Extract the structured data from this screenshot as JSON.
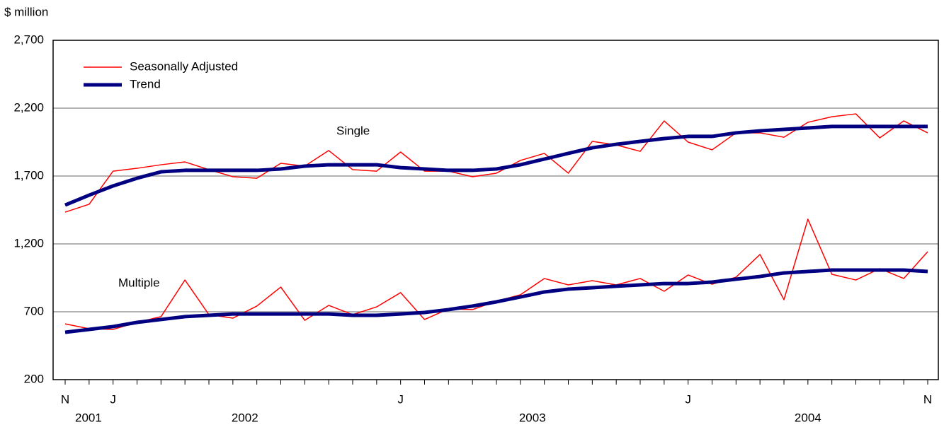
{
  "chart_data": {
    "type": "line",
    "y_axis_label": "$ million",
    "x": [
      "2001-11",
      "2001-12",
      "2002-01",
      "2002-02",
      "2002-03",
      "2002-04",
      "2002-05",
      "2002-06",
      "2002-07",
      "2002-08",
      "2002-09",
      "2002-10",
      "2002-11",
      "2002-12",
      "2003-01",
      "2003-02",
      "2003-03",
      "2003-04",
      "2003-05",
      "2003-06",
      "2003-07",
      "2003-08",
      "2003-09",
      "2003-10",
      "2003-11",
      "2003-12",
      "2004-01",
      "2004-02",
      "2004-03",
      "2004-04",
      "2004-05",
      "2004-06",
      "2004-07",
      "2004-08",
      "2004-09",
      "2004-10",
      "2004-11"
    ],
    "xticks": [
      {
        "value": "2001-11",
        "label": "N"
      },
      {
        "value": "2002-01",
        "label": "J"
      },
      {
        "value": "2003-01",
        "label": "J"
      },
      {
        "value": "2004-01",
        "label": "J"
      },
      {
        "value": "2004-11",
        "label": "N"
      }
    ],
    "years": [
      "2001",
      "2002",
      "2003",
      "2004"
    ],
    "ylim": [
      200,
      2700
    ],
    "yticks": [
      200,
      {
        "value": 700,
        "label": "700"
      },
      {
        "value": 1200,
        "label": "1,200"
      },
      {
        "value": 1700,
        "label": "1,700"
      },
      {
        "value": 2200,
        "label": "2,200"
      },
      {
        "value": 2700,
        "label": "2,700"
      }
    ],
    "grid": true,
    "legend": "upper left",
    "annotations": [
      "Single",
      "Multiple"
    ],
    "series": [
      {
        "name": "Seasonally Adjusted",
        "color": "#ff0000",
        "line_width": 1.5,
        "values": [
          [
            1434,
            1492,
            1736,
            1757,
            1783,
            1804,
            1747,
            1695,
            1684,
            1794,
            1773,
            1888,
            1747,
            1736,
            1877,
            1736,
            1736,
            1695,
            1721,
            1815,
            1867,
            1721,
            1955,
            1929,
            1882,
            2106,
            1950,
            1893,
            2018,
            2018,
            1986,
            2096,
            2137,
            2158,
            1981,
            2106,
            2018
          ],
          [
            611,
            575,
            570,
            622,
            664,
            934,
            679,
            653,
            742,
            882,
            637,
            747,
            679,
            736,
            841,
            643,
            721,
            716,
            778,
            825,
            945,
            898,
            929,
            898,
            945,
            851,
            971,
            903,
            955,
            1122,
            789,
            1382,
            976,
            934,
            1018,
            945,
            1143
          ]
        ]
      },
      {
        "name": "Trend",
        "color": "#000080",
        "line_width": 5,
        "values": [
          [
            1486,
            1559,
            1627,
            1684,
            1731,
            1742,
            1742,
            1742,
            1742,
            1752,
            1773,
            1783,
            1783,
            1783,
            1762,
            1752,
            1742,
            1742,
            1752,
            1783,
            1825,
            1867,
            1908,
            1934,
            1955,
            1976,
            1992,
            1992,
            2018,
            2033,
            2044,
            2054,
            2065,
            2065,
            2065,
            2065,
            2065
          ],
          [
            549,
            570,
            591,
            622,
            643,
            664,
            674,
            684,
            684,
            684,
            684,
            684,
            674,
            674,
            684,
            695,
            716,
            742,
            773,
            809,
            846,
            867,
            877,
            888,
            898,
            908,
            908,
            919,
            940,
            960,
            986,
            997,
            1007,
            1007,
            1007,
            1007,
            997
          ]
        ]
      }
    ]
  }
}
